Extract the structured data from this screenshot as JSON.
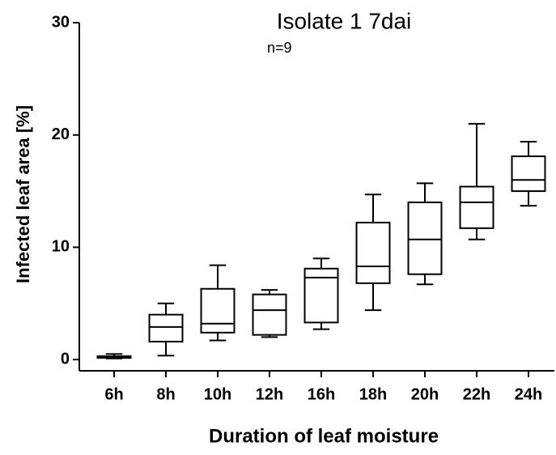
{
  "chart_data": {
    "type": "box",
    "title": "Isolate 1 7dai",
    "subtitle": "n=9",
    "x_label": "Duration of leaf moisture",
    "y_label": "Infected leaf area [%]",
    "categories": [
      "6h",
      "8h",
      "10h",
      "12h",
      "16h",
      "18h",
      "20h",
      "22h",
      "24h"
    ],
    "min": [
      0.1,
      0.35,
      1.7,
      2.0,
      2.7,
      4.4,
      6.7,
      10.7,
      13.7
    ],
    "q1": [
      0.15,
      1.6,
      2.4,
      2.2,
      3.3,
      6.8,
      7.6,
      11.7,
      15.0
    ],
    "median": [
      0.2,
      2.9,
      3.2,
      4.4,
      7.3,
      8.3,
      10.7,
      14.0,
      16.0
    ],
    "q3": [
      0.3,
      4.0,
      6.3,
      5.8,
      8.1,
      12.2,
      14.0,
      15.4,
      18.1
    ],
    "max": [
      0.5,
      5.0,
      8.4,
      6.2,
      9.0,
      14.7,
      15.7,
      21.0,
      19.4
    ],
    "color": "#000000",
    "ylim": [
      -1,
      30
    ],
    "yticks": [
      0,
      10,
      20,
      30
    ],
    "grid": false
  }
}
